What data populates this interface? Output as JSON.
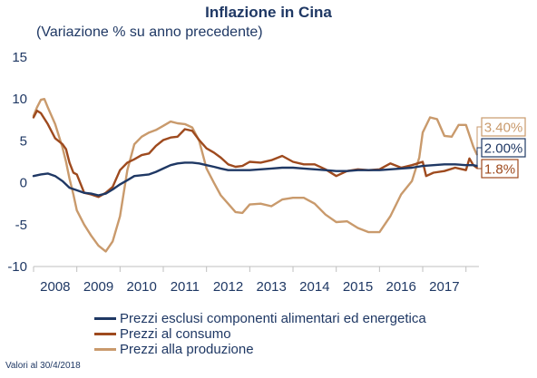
{
  "chart_data": {
    "type": "line",
    "title": "Inflazione in Cina",
    "subtitle": "(Variazione % su anno precedente)",
    "ylim": [
      -10,
      15
    ],
    "yticks": [
      15,
      10,
      5,
      0,
      -5,
      -10
    ],
    "ytick_labels": [
      "15",
      "10",
      "5",
      "0",
      "-5",
      "-10"
    ],
    "xlim": [
      2008,
      2018.3
    ],
    "xticks": [
      2008,
      2009,
      2010,
      2011,
      2012,
      2013,
      2014,
      2015,
      2016,
      2017
    ],
    "xtick_labels": [
      "2008",
      "2009",
      "2010",
      "2011",
      "2012",
      "2013",
      "2014",
      "2015",
      "2016",
      "2017"
    ],
    "grid": false,
    "legend_position": "bottom",
    "series": [
      {
        "name": "Prezzi esclusi componenti alimentari ed energetica",
        "color": "#1f3864",
        "end_label": "2.00%",
        "x": [
          2008.0,
          2008.17,
          2008.33,
          2008.5,
          2008.67,
          2008.83,
          2009.0,
          2009.17,
          2009.33,
          2009.5,
          2009.67,
          2009.83,
          2010.0,
          2010.17,
          2010.33,
          2010.5,
          2010.67,
          2010.83,
          2011.0,
          2011.17,
          2011.33,
          2011.5,
          2011.67,
          2011.83,
          2012.0,
          2012.17,
          2012.33,
          2012.5,
          2012.67,
          2012.83,
          2013.0,
          2013.25,
          2013.5,
          2013.75,
          2014.0,
          2014.25,
          2014.5,
          2014.75,
          2015.0,
          2015.25,
          2015.5,
          2015.75,
          2016.0,
          2016.25,
          2016.5,
          2016.75,
          2017.0,
          2017.25,
          2017.5,
          2017.75,
          2018.0,
          2018.17,
          2018.25
        ],
        "values": [
          0.8,
          1.0,
          1.1,
          0.8,
          0.2,
          -0.6,
          -0.9,
          -1.2,
          -1.3,
          -1.5,
          -1.3,
          -0.8,
          -0.2,
          0.3,
          0.8,
          0.9,
          1.0,
          1.3,
          1.7,
          2.1,
          2.3,
          2.4,
          2.4,
          2.3,
          2.1,
          1.9,
          1.7,
          1.5,
          1.5,
          1.5,
          1.5,
          1.6,
          1.7,
          1.8,
          1.8,
          1.7,
          1.6,
          1.5,
          1.4,
          1.4,
          1.5,
          1.5,
          1.5,
          1.6,
          1.7,
          1.8,
          2.0,
          2.1,
          2.2,
          2.2,
          2.1,
          2.1,
          2.0
        ]
      },
      {
        "name": "Prezzi al consumo",
        "color": "#9e4a1e",
        "end_label": "1.8%",
        "x": [
          2008.0,
          2008.08,
          2008.17,
          2008.33,
          2008.5,
          2008.67,
          2008.75,
          2008.83,
          2008.92,
          2009.0,
          2009.17,
          2009.33,
          2009.5,
          2009.67,
          2009.83,
          2010.0,
          2010.17,
          2010.33,
          2010.5,
          2010.67,
          2010.83,
          2011.0,
          2011.17,
          2011.33,
          2011.5,
          2011.67,
          2011.83,
          2012.0,
          2012.17,
          2012.33,
          2012.5,
          2012.67,
          2012.83,
          2013.0,
          2013.25,
          2013.5,
          2013.75,
          2014.0,
          2014.25,
          2014.5,
          2014.75,
          2015.0,
          2015.25,
          2015.5,
          2015.75,
          2016.0,
          2016.25,
          2016.5,
          2016.75,
          2017.0,
          2017.08,
          2017.25,
          2017.5,
          2017.75,
          2018.0,
          2018.08,
          2018.17,
          2018.25
        ],
        "values": [
          7.8,
          8.6,
          8.3,
          7.0,
          5.3,
          4.6,
          4.0,
          2.4,
          1.2,
          1.0,
          -1.2,
          -1.4,
          -1.7,
          -1.2,
          -0.5,
          1.5,
          2.4,
          2.8,
          3.3,
          3.5,
          4.4,
          5.1,
          5.4,
          5.5,
          6.4,
          6.2,
          5.1,
          4.1,
          3.6,
          3.0,
          2.2,
          1.9,
          2.0,
          2.5,
          2.4,
          2.7,
          3.2,
          2.5,
          2.2,
          2.2,
          1.6,
          0.8,
          1.4,
          1.6,
          1.5,
          1.6,
          2.3,
          1.8,
          2.1,
          2.5,
          0.8,
          1.2,
          1.4,
          1.8,
          1.5,
          2.9,
          2.1,
          1.8
        ]
      },
      {
        "name": "Prezzi alla produzione",
        "color": "#c99a6c",
        "end_label": "3.40%",
        "x": [
          2008.0,
          2008.08,
          2008.17,
          2008.25,
          2008.33,
          2008.5,
          2008.67,
          2008.75,
          2008.83,
          2008.92,
          2009.0,
          2009.17,
          2009.33,
          2009.5,
          2009.67,
          2009.83,
          2010.0,
          2010.17,
          2010.33,
          2010.5,
          2010.67,
          2010.83,
          2011.0,
          2011.17,
          2011.33,
          2011.5,
          2011.67,
          2011.83,
          2012.0,
          2012.17,
          2012.33,
          2012.5,
          2012.67,
          2012.83,
          2013.0,
          2013.25,
          2013.5,
          2013.75,
          2014.0,
          2014.25,
          2014.5,
          2014.75,
          2015.0,
          2015.25,
          2015.5,
          2015.75,
          2016.0,
          2016.25,
          2016.5,
          2016.75,
          2016.92,
          2017.0,
          2017.17,
          2017.33,
          2017.5,
          2017.67,
          2017.83,
          2018.0,
          2018.17,
          2018.25
        ],
        "values": [
          8.0,
          9.0,
          9.9,
          10.0,
          9.0,
          7.0,
          4.2,
          2.5,
          0.5,
          -1.4,
          -3.3,
          -5.0,
          -6.3,
          -7.5,
          -8.2,
          -7.0,
          -4.0,
          1.5,
          4.6,
          5.5,
          6.0,
          6.3,
          6.8,
          7.3,
          7.1,
          7.0,
          6.6,
          5.0,
          1.7,
          0.0,
          -1.5,
          -2.5,
          -3.5,
          -3.6,
          -2.6,
          -2.5,
          -2.8,
          -2.0,
          -1.8,
          -1.8,
          -2.5,
          -3.8,
          -4.7,
          -4.6,
          -5.4,
          -5.9,
          -5.9,
          -4.0,
          -1.4,
          0.2,
          3.0,
          6.0,
          7.8,
          7.6,
          5.6,
          5.5,
          6.9,
          6.9,
          4.3,
          3.4
        ]
      }
    ]
  },
  "note": "Valori al 30/4/2018"
}
